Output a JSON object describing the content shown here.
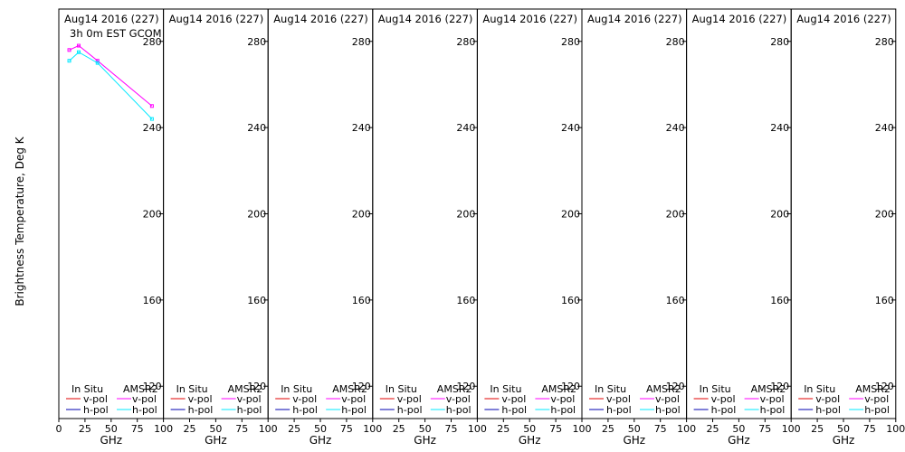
{
  "y_axis_label": "Brightness Temperature, Deg K",
  "panel_title": "Aug14 2016 (227)",
  "panel_subtitle": "3h 0m EST GCOM",
  "legend": {
    "in_situ_header": "In Situ",
    "sensor_header": "AMSR2",
    "vpol_label": "v-pol",
    "hpol_label": "h-pol"
  },
  "colors": {
    "insitu_vpol": "#e00000",
    "insitu_hpol": "#0000b0",
    "amsr2_vpol": "#ff00ff",
    "amsr2_hpol": "#00e8ff"
  },
  "chart_data": [
    {
      "type": "line",
      "title": "Aug14 2016 (227)",
      "subtitle": "3h 0m EST GCOM",
      "xlabel": "GHz",
      "ylabel": "Brightness Temperature, Deg K",
      "xlim": [
        0,
        100
      ],
      "ylim": [
        105,
        295
      ],
      "xticks": [
        0,
        25,
        50,
        75,
        100
      ],
      "yticks": [
        120,
        160,
        200,
        240,
        280
      ],
      "series": [
        {
          "name": "AMSR2 v-pol",
          "x": [
            10,
            19,
            37,
            89
          ],
          "y": [
            276,
            278,
            271,
            250
          ]
        },
        {
          "name": "AMSR2 h-pol",
          "x": [
            10,
            19,
            37,
            89
          ],
          "y": [
            271,
            275,
            270,
            244
          ]
        }
      ]
    },
    {
      "type": "line",
      "title": "Aug14 2016 (227)",
      "xlabel": "GHz",
      "xlim": [
        0,
        100
      ],
      "ylim": [
        105,
        295
      ],
      "xticks": [
        25,
        50,
        75,
        100
      ],
      "yticks": [
        120,
        160,
        200,
        240,
        280
      ],
      "series": []
    },
    {
      "type": "line",
      "title": "Aug14 2016 (227)",
      "xlabel": "GHz",
      "xlim": [
        0,
        100
      ],
      "ylim": [
        105,
        295
      ],
      "xticks": [
        25,
        50,
        75,
        100
      ],
      "yticks": [
        120,
        160,
        200,
        240,
        280
      ],
      "series": []
    },
    {
      "type": "line",
      "title": "Aug14 2016 (227)",
      "xlabel": "GHz",
      "xlim": [
        0,
        100
      ],
      "ylim": [
        105,
        295
      ],
      "xticks": [
        25,
        50,
        75,
        100
      ],
      "yticks": [
        120,
        160,
        200,
        240,
        280
      ],
      "series": []
    },
    {
      "type": "line",
      "title": "Aug14 2016 (227)",
      "xlabel": "GHz",
      "xlim": [
        0,
        100
      ],
      "ylim": [
        105,
        295
      ],
      "xticks": [
        25,
        50,
        75,
        100
      ],
      "yticks": [
        120,
        160,
        200,
        240,
        280
      ],
      "series": []
    },
    {
      "type": "line",
      "title": "Aug14 2016 (227)",
      "xlabel": "GHz",
      "xlim": [
        0,
        100
      ],
      "ylim": [
        105,
        295
      ],
      "xticks": [
        25,
        50,
        75,
        100
      ],
      "yticks": [
        120,
        160,
        200,
        240,
        280
      ],
      "series": []
    },
    {
      "type": "line",
      "title": "Aug14 2016 (227)",
      "xlabel": "GHz",
      "xlim": [
        0,
        100
      ],
      "ylim": [
        105,
        295
      ],
      "xticks": [
        25,
        50,
        75,
        100
      ],
      "yticks": [
        120,
        160,
        200,
        240,
        280
      ],
      "series": []
    },
    {
      "type": "line",
      "title": "Aug14 2016 (227)",
      "xlabel": "GHz",
      "xlim": [
        0,
        100
      ],
      "ylim": [
        105,
        295
      ],
      "xticks": [
        25,
        50,
        75,
        100
      ],
      "yticks": [
        120,
        160,
        200,
        240,
        280
      ],
      "series": []
    }
  ]
}
